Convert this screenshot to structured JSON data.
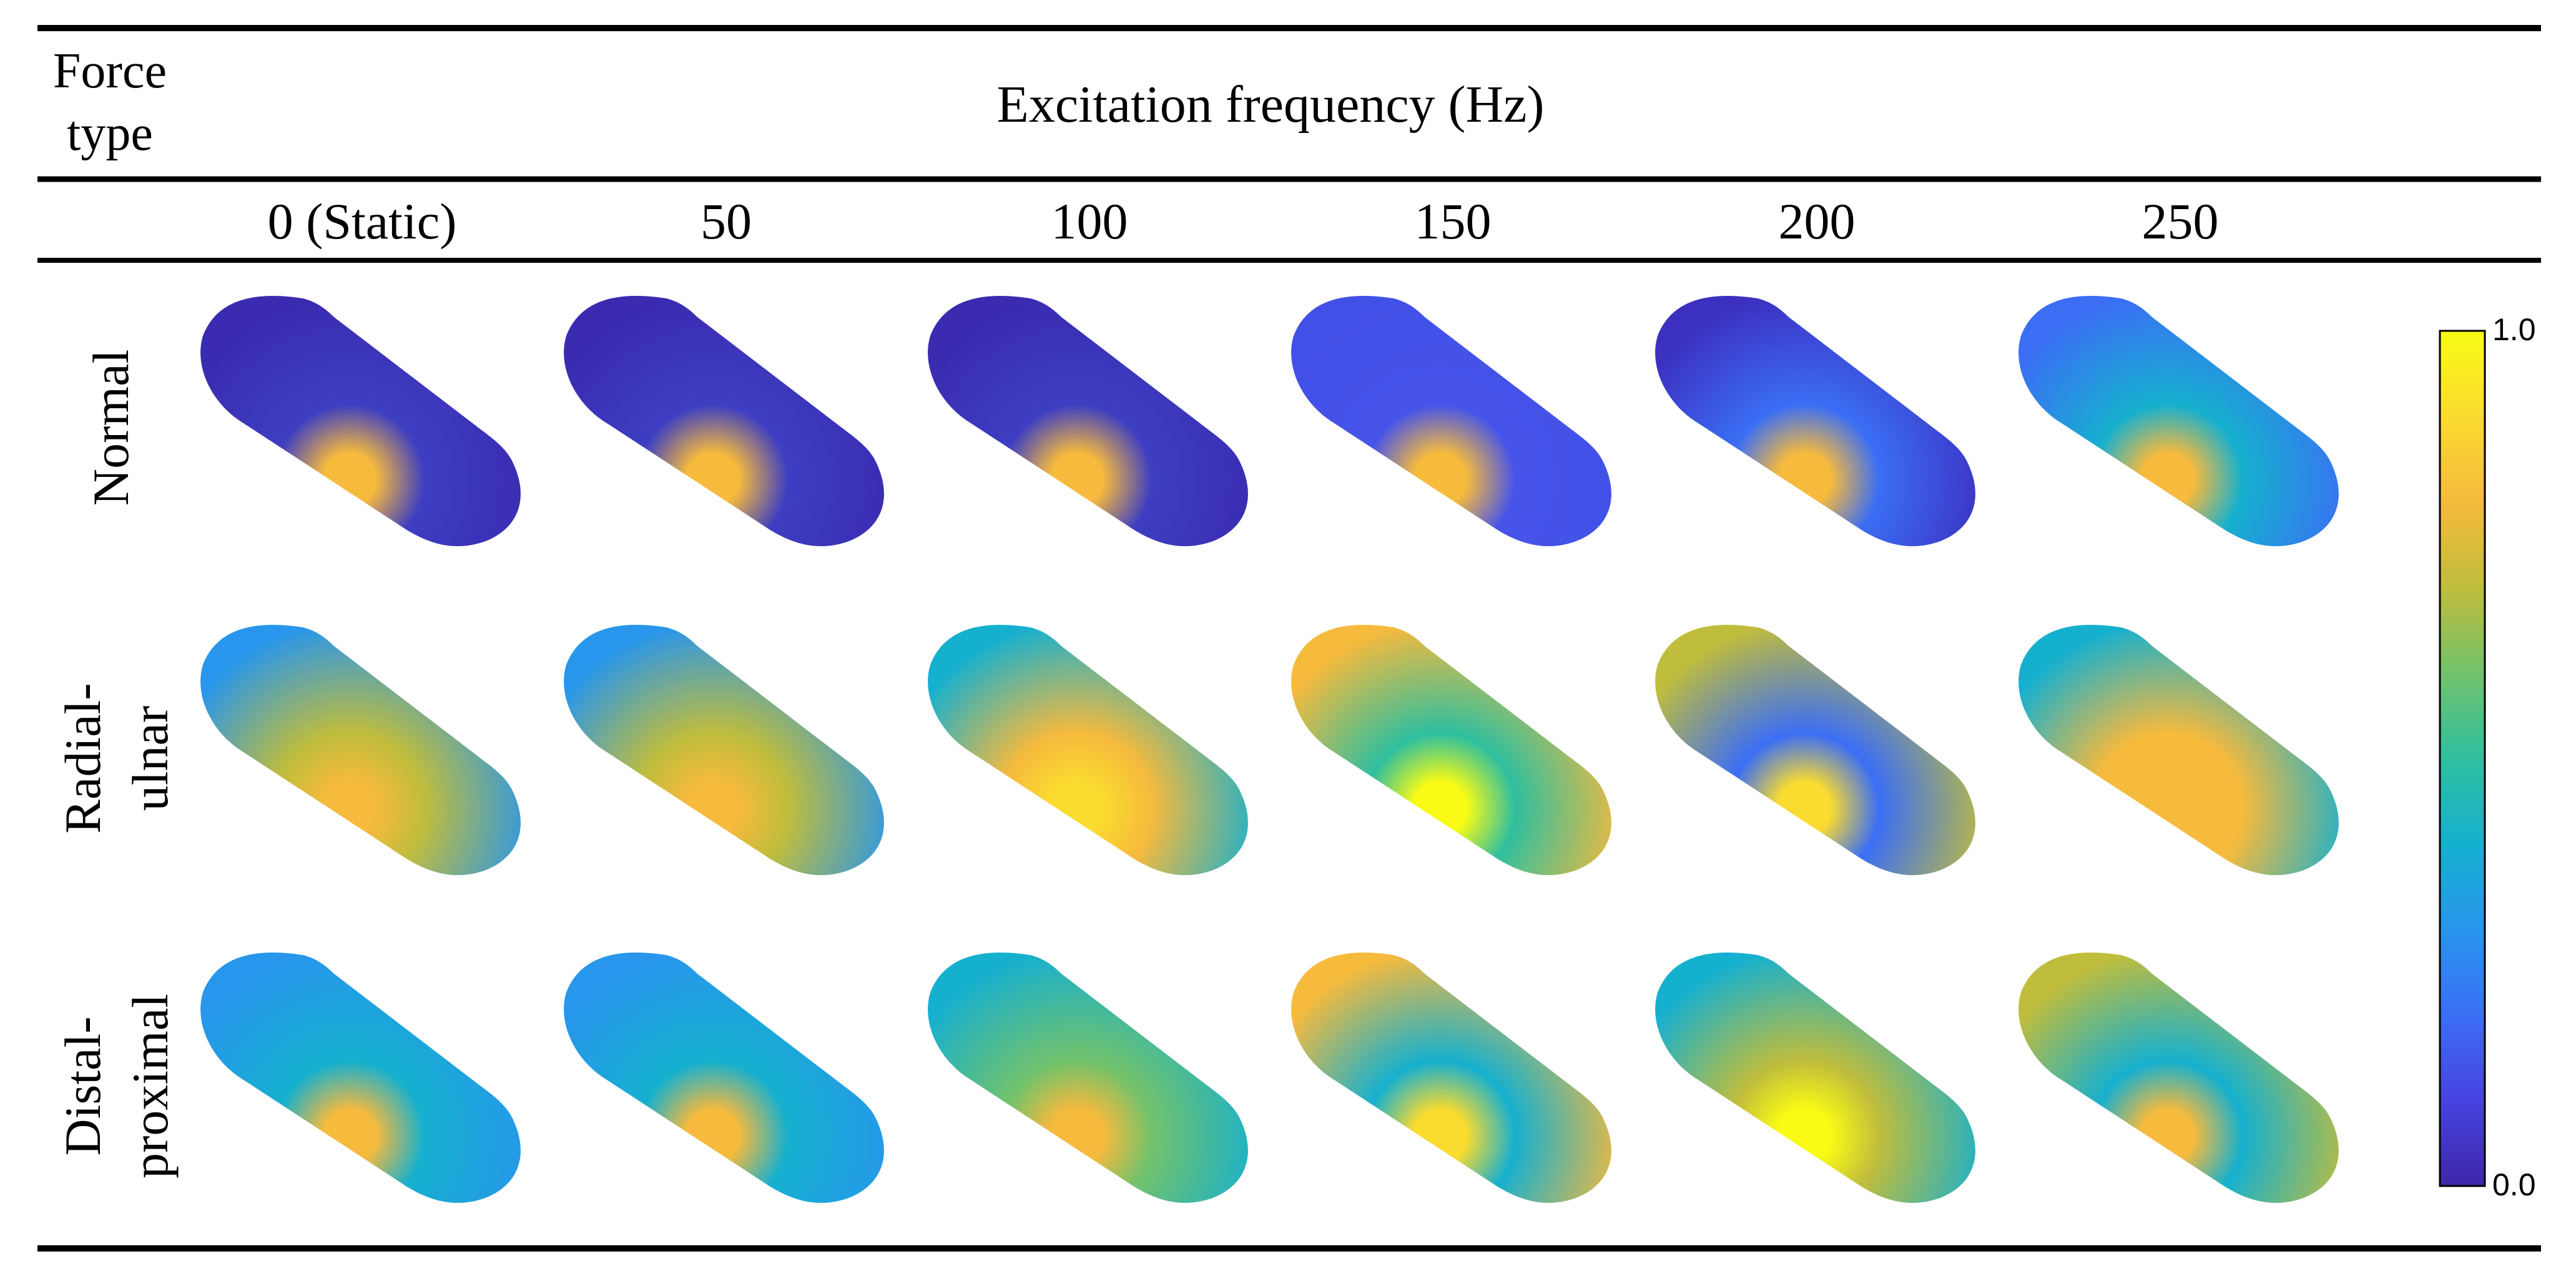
{
  "header": {
    "force_type_line1": "Force",
    "force_type_line2": "type",
    "excitation_title": "Excitation frequency (Hz)"
  },
  "columns": [
    {
      "label": "0 (Static)"
    },
    {
      "label": "50"
    },
    {
      "label": "100"
    },
    {
      "label": "150"
    },
    {
      "label": "200"
    },
    {
      "label": "250"
    }
  ],
  "rows": [
    {
      "label_lines": [
        "Normal"
      ]
    },
    {
      "label_lines": [
        "Radial-",
        "ulnar"
      ]
    },
    {
      "label_lines": [
        "Distal-",
        "proximal"
      ]
    }
  ],
  "colorbar": {
    "max_label": "1.0",
    "min_label": "0.0",
    "colors": [
      "#3e26a8",
      "#4743e0",
      "#3b6ef5",
      "#2796ec",
      "#16b0cf",
      "#2fbf9f",
      "#72c26b",
      "#c0bd3c",
      "#f6ba3d",
      "#fadb2f",
      "#f9fb15"
    ]
  },
  "maps": [
    [
      {
        "base": "#3a2bb0",
        "accent": "#3d3ec2",
        "hot": "#f6ba3d"
      },
      {
        "base": "#3a2bb0",
        "accent": "#3d3ec2",
        "hot": "#f6ba3d"
      },
      {
        "base": "#3a2bb0",
        "accent": "#3d3ec2",
        "hot": "#f6ba3d"
      },
      {
        "base": "#4150e6",
        "accent": "#4654ea",
        "hot": "#f6ba3d"
      },
      {
        "base": "#3c30c0",
        "accent": "#3b6ef5",
        "hot": "#f6ba3d"
      },
      {
        "base": "#3b6ef5",
        "accent": "#16b0cf",
        "hot": "#f6ba3d"
      }
    ],
    [
      {
        "base": "#2796ec",
        "accent": "#c0bd3c",
        "hot": "#f6ba3d"
      },
      {
        "base": "#2796ec",
        "accent": "#c0bd3c",
        "hot": "#f6ba3d"
      },
      {
        "base": "#16b0cf",
        "accent": "#f6ba3d",
        "hot": "#fadb2f"
      },
      {
        "base": "#f6ba3d",
        "accent": "#2fbf9f",
        "hot": "#f9fb15"
      },
      {
        "base": "#c0bd3c",
        "accent": "#3b6ef5",
        "hot": "#fadb2f"
      },
      {
        "base": "#16b0cf",
        "accent": "#f6ba3d",
        "hot": "#f6ba3d"
      }
    ],
    [
      {
        "base": "#2796ec",
        "accent": "#16b0cf",
        "hot": "#f6ba3d"
      },
      {
        "base": "#2796ec",
        "accent": "#16b0cf",
        "hot": "#f6ba3d"
      },
      {
        "base": "#16b0cf",
        "accent": "#72c26b",
        "hot": "#f6ba3d"
      },
      {
        "base": "#f6ba3d",
        "accent": "#16b0cf",
        "hot": "#fadb2f"
      },
      {
        "base": "#16b0cf",
        "accent": "#c0bd3c",
        "hot": "#f9fb15"
      },
      {
        "base": "#c0bd3c",
        "accent": "#16b0cf",
        "hot": "#f6ba3d"
      }
    ]
  ]
}
